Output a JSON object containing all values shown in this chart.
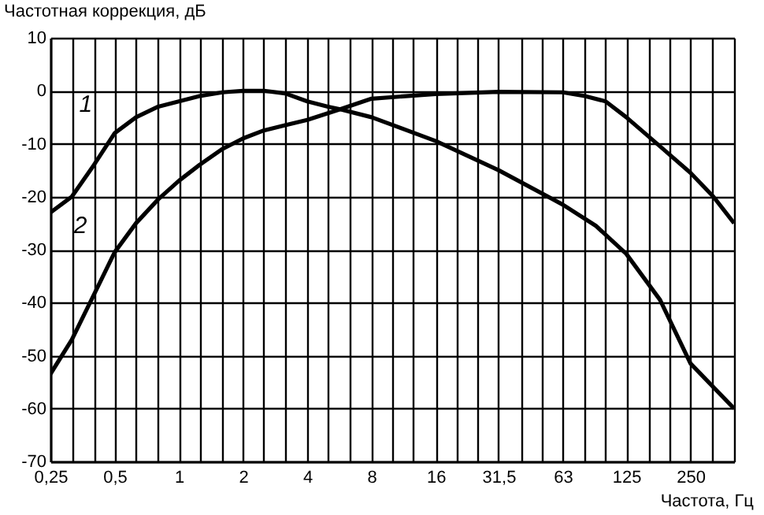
{
  "chart_data": {
    "type": "line",
    "xlabel": "Частота, Гц",
    "ylabel": "Частотная коррекция, дБ",
    "log": "x",
    "xlim": [
      0.25,
      400
    ],
    "ylim": [
      -70,
      10
    ],
    "xticks": [
      {
        "value": 0.25,
        "label": "0,25"
      },
      {
        "value": 0.315,
        "label": null
      },
      {
        "value": 0.4,
        "label": null
      },
      {
        "value": 0.5,
        "label": "0,5"
      },
      {
        "value": 0.63,
        "label": null
      },
      {
        "value": 0.8,
        "label": null
      },
      1,
      {
        "value": 1.25,
        "label": null
      },
      {
        "value": 1.6,
        "label": null
      },
      2,
      {
        "value": 2.5,
        "label": null
      },
      {
        "value": 3.15,
        "label": null
      },
      4,
      {
        "value": 5,
        "label": null
      },
      {
        "value": 6.3,
        "label": null
      },
      8,
      {
        "value": 10,
        "label": null
      },
      {
        "value": 12.5,
        "label": null
      },
      16,
      {
        "value": 20,
        "label": null
      },
      {
        "value": 25,
        "label": null
      },
      {
        "value": 31.5,
        "label": "31,5"
      },
      {
        "value": 40,
        "label": null
      },
      {
        "value": 50,
        "label": null
      },
      63,
      {
        "value": 80,
        "label": null
      },
      {
        "value": 100,
        "label": null
      },
      125,
      {
        "value": 160,
        "label": null
      },
      {
        "value": 200,
        "label": null
      },
      250,
      {
        "value": 315,
        "label": null
      },
      {
        "value": 400,
        "label": null
      }
    ],
    "yticks": [
      -70,
      -60,
      -50,
      -40,
      -30,
      -20,
      -10,
      0,
      10
    ],
    "grid": true,
    "marker": "none",
    "line_style": "solid",
    "series": [
      {
        "color": "#000000",
        "x": [
          0.25,
          0.315,
          0.4,
          0.5,
          0.63,
          0.8,
          1,
          1.25,
          1.6,
          2,
          2.5,
          3.15,
          4,
          5,
          5.7,
          8,
          16,
          31.5,
          63,
          90,
          125,
          180,
          250,
          400
        ],
        "values": [
          -23,
          -20,
          -14,
          -8,
          -5,
          -3,
          -2,
          -1,
          -0.3,
          0,
          0,
          -0.5,
          -2,
          -3,
          -3.5,
          -5,
          -9.5,
          -15,
          -21.5,
          -25.5,
          -30.8,
          -39.5,
          -51.5,
          -60
        ]
      },
      {
        "color": "#000000",
        "x": [
          0.25,
          0.315,
          0.4,
          0.5,
          0.63,
          0.8,
          1,
          1.25,
          1.6,
          2,
          2.5,
          3.15,
          4,
          5.7,
          8,
          16,
          31.5,
          63,
          80,
          100,
          125,
          180,
          250,
          320,
          400
        ],
        "values": [
          -53.5,
          -47,
          -38.5,
          -30.5,
          -25,
          -20.5,
          -17,
          -14,
          -11,
          -9,
          -7.5,
          -6.5,
          -5.5,
          -3.5,
          -1.5,
          -0.6,
          -0.2,
          -0.3,
          -1,
          -2,
          -5,
          -10.5,
          -15.5,
          -20,
          -25
        ]
      }
    ],
    "annotations": [
      {
        "text": "1",
        "x": 0.55,
        "y": -6
      },
      {
        "text": "2",
        "x": 0.52,
        "y": -29
      }
    ]
  }
}
